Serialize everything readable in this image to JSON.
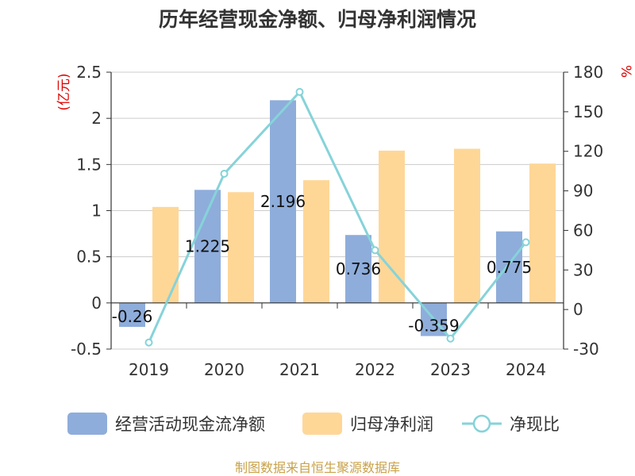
{
  "chart_data": {
    "type": "bar",
    "title": "历年经营现金净额、归母净利润情况",
    "categories": [
      "2019",
      "2020",
      "2021",
      "2022",
      "2023",
      "2024"
    ],
    "series": [
      {
        "name": "经营活动现金流净额",
        "axis": "left",
        "kind": "bar",
        "color": "#8eaddb",
        "values": [
          -0.26,
          1.225,
          2.196,
          0.736,
          -0.359,
          0.775
        ],
        "labels": [
          "-0.26",
          "1.225",
          "2.196",
          "0.736",
          "-0.359",
          "0.775"
        ]
      },
      {
        "name": "归母净利润",
        "axis": "left",
        "kind": "bar",
        "color": "#fed797",
        "values": [
          1.04,
          1.2,
          1.33,
          1.65,
          1.67,
          1.51
        ]
      },
      {
        "name": "净现比",
        "axis": "right",
        "kind": "line",
        "color": "#86d3d9",
        "values": [
          -25,
          103,
          165,
          45,
          -22,
          51
        ]
      }
    ],
    "left_axis": {
      "unit": "(亿元)",
      "min": -0.5,
      "max": 2.5,
      "ticks": [
        "-0.5",
        "0",
        "0.5",
        "1",
        "1.5",
        "2",
        "2.5"
      ]
    },
    "right_axis": {
      "unit": "%",
      "min": -30,
      "max": 180,
      "ticks": [
        "-30",
        "0",
        "30",
        "60",
        "90",
        "120",
        "150",
        "180"
      ]
    },
    "grid": true,
    "legend_position": "bottom",
    "source": "制图数据来自恒生聚源数据库"
  }
}
